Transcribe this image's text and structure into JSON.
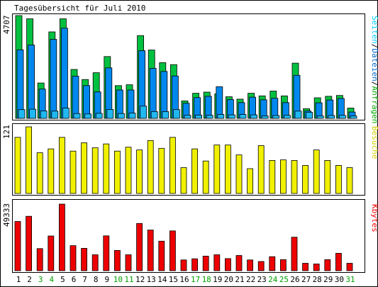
{
  "title": "Tagesübersicht für Juli 2010",
  "colors": {
    "seiten": "#00aa00",
    "dateien": "#0088ee",
    "anfragen": "#00c040",
    "besuche": "#f0f000",
    "kbytes": "#ee0000",
    "weekend": "#00a000",
    "weekday": "#000000"
  },
  "chart_data": [
    {
      "type": "bar",
      "panel": "top",
      "ymax_label": "4707",
      "ylim": [
        0,
        4707
      ],
      "legend": [
        {
          "name": "Seiten",
          "color": "#00ccff"
        },
        {
          "name": "Dateien",
          "color": "#0066cc"
        },
        {
          "name": "Anfragen",
          "color": "#00aa00"
        }
      ],
      "legend_separator": "/",
      "categories": [
        "1",
        "2",
        "3",
        "4",
        "5",
        "6",
        "7",
        "8",
        "9",
        "10",
        "11",
        "12",
        "13",
        "14",
        "15",
        "16",
        "17",
        "18",
        "19",
        "20",
        "21",
        "22",
        "23",
        "24",
        "25",
        "26",
        "27",
        "28",
        "29",
        "30",
        "31"
      ],
      "series": [
        {
          "name": "Anfragen",
          "values": [
            4707,
            4560,
            1620,
            3960,
            4560,
            2240,
            1780,
            2090,
            2830,
            1500,
            1540,
            3790,
            3130,
            2550,
            2460,
            800,
            1150,
            1200,
            1120,
            990,
            880,
            1150,
            1030,
            1250,
            1030,
            2530,
            440,
            940,
            1010,
            1050,
            470
          ]
        },
        {
          "name": "Dateien",
          "values": [
            3140,
            3360,
            1340,
            3620,
            4130,
            1930,
            1500,
            1210,
            2310,
            1300,
            1300,
            3100,
            2290,
            2150,
            1940,
            690,
            950,
            1010,
            1450,
            860,
            720,
            970,
            850,
            920,
            720,
            1970,
            340,
            710,
            840,
            910,
            290
          ]
        },
        {
          "name": "Seiten",
          "values": [
            400,
            420,
            340,
            330,
            470,
            220,
            200,
            230,
            410,
            220,
            240,
            560,
            310,
            310,
            400,
            140,
            150,
            140,
            180,
            160,
            180,
            160,
            110,
            130,
            140,
            330,
            280,
            110,
            130,
            140,
            110
          ]
        }
      ]
    },
    {
      "type": "bar",
      "panel": "middle",
      "ymax_label": "121",
      "ylim": [
        0,
        121
      ],
      "legend": [
        {
          "name": "Besuche",
          "color": "#d0d000"
        }
      ],
      "categories": [
        "1",
        "2",
        "3",
        "4",
        "5",
        "6",
        "7",
        "8",
        "9",
        "10",
        "11",
        "12",
        "13",
        "14",
        "15",
        "16",
        "17",
        "18",
        "19",
        "20",
        "21",
        "22",
        "23",
        "24",
        "25",
        "26",
        "27",
        "28",
        "29",
        "30",
        "31"
      ],
      "series": [
        {
          "name": "Besuche",
          "values": [
            102,
            121,
            74,
            81,
            102,
            77,
            92,
            83,
            90,
            77,
            84,
            79,
            96,
            82,
            102,
            47,
            81,
            59,
            88,
            88,
            70,
            45,
            87,
            60,
            61,
            60,
            51,
            79,
            60,
            51,
            47
          ]
        }
      ]
    },
    {
      "type": "bar",
      "panel": "bottom",
      "ymax_label": "49333",
      "ylim": [
        0,
        49333
      ],
      "legend": [
        {
          "name": "Kbytes",
          "color": "#ee0000"
        }
      ],
      "categories": [
        "1",
        "2",
        "3",
        "4",
        "5",
        "6",
        "7",
        "8",
        "9",
        "10",
        "11",
        "12",
        "13",
        "14",
        "15",
        "16",
        "17",
        "18",
        "19",
        "20",
        "21",
        "22",
        "23",
        "24",
        "25",
        "26",
        "27",
        "28",
        "29",
        "30",
        "31"
      ],
      "series": [
        {
          "name": "Kbytes",
          "values": [
            36500,
            40300,
            16400,
            25700,
            49333,
            18600,
            16600,
            11800,
            25800,
            15000,
            11800,
            35000,
            30100,
            21900,
            29500,
            8000,
            8800,
            10800,
            11800,
            9000,
            11300,
            8000,
            6800,
            10400,
            8200,
            24800,
            5500,
            5000,
            8200,
            12900,
            5500
          ]
        }
      ]
    }
  ],
  "x_labels": [
    {
      "label": "1",
      "weekend": false
    },
    {
      "label": "2",
      "weekend": false
    },
    {
      "label": "3",
      "weekend": true
    },
    {
      "label": "4",
      "weekend": true
    },
    {
      "label": "5",
      "weekend": false
    },
    {
      "label": "6",
      "weekend": false
    },
    {
      "label": "7",
      "weekend": false
    },
    {
      "label": "8",
      "weekend": false
    },
    {
      "label": "9",
      "weekend": false
    },
    {
      "label": "10",
      "weekend": true
    },
    {
      "label": "11",
      "weekend": true
    },
    {
      "label": "12",
      "weekend": false
    },
    {
      "label": "13",
      "weekend": false
    },
    {
      "label": "14",
      "weekend": false
    },
    {
      "label": "15",
      "weekend": false
    },
    {
      "label": "16",
      "weekend": false
    },
    {
      "label": "17",
      "weekend": true
    },
    {
      "label": "18",
      "weekend": true
    },
    {
      "label": "19",
      "weekend": false
    },
    {
      "label": "20",
      "weekend": false
    },
    {
      "label": "21",
      "weekend": false
    },
    {
      "label": "22",
      "weekend": false
    },
    {
      "label": "23",
      "weekend": false
    },
    {
      "label": "24",
      "weekend": true
    },
    {
      "label": "25",
      "weekend": true
    },
    {
      "label": "26",
      "weekend": false
    },
    {
      "label": "27",
      "weekend": false
    },
    {
      "label": "28",
      "weekend": false
    },
    {
      "label": "29",
      "weekend": false
    },
    {
      "label": "30",
      "weekend": false
    },
    {
      "label": "31",
      "weekend": true
    }
  ]
}
